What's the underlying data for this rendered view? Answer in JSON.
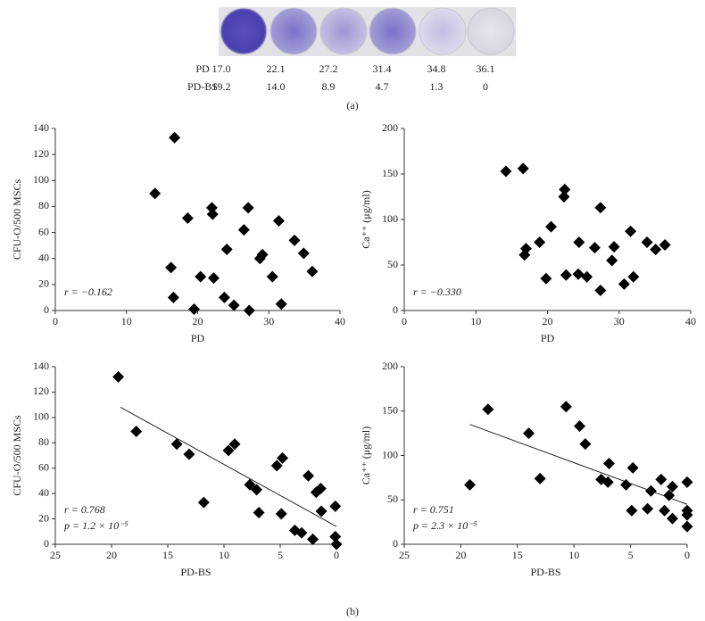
{
  "panel_a": {
    "rows": [
      {
        "label": "PD",
        "values": [
          "17.0",
          "22.1",
          "27.2",
          "31.4",
          "34.8",
          "36.1"
        ]
      },
      {
        "label": "PD-BS",
        "values": [
          "19.2",
          "14.0",
          "8.9",
          "4.7",
          "1.3",
          "0"
        ]
      }
    ],
    "caption": "(a)"
  },
  "caption_b": "(b)",
  "chart_data": [
    {
      "type": "scatter",
      "x_label": "PD",
      "y_label": "CFU-O/500 MSCs",
      "color": "#000000",
      "x": [
        14.0,
        16.75,
        16.25,
        16.6,
        18.6,
        19.5,
        20.4,
        22.0,
        22.1,
        22.25,
        23.75,
        24.1,
        25.1,
        26.5,
        27.1,
        27.25,
        28.75,
        29.1,
        30.5,
        31.4,
        31.75,
        33.6,
        34.9,
        36.1
      ],
      "y": [
        90,
        133,
        33,
        10,
        71,
        1,
        26,
        79,
        74,
        25,
        10,
        47,
        4,
        62,
        79,
        0,
        40,
        43,
        26,
        69,
        5,
        54,
        44,
        30
      ],
      "xlim": [
        0,
        40
      ],
      "ylim": [
        0,
        140
      ],
      "xticks": [
        0,
        10,
        20,
        30,
        40
      ],
      "yticks": [
        0,
        20,
        40,
        60,
        80,
        100,
        120,
        140
      ],
      "annotations": [
        "r = −0.162"
      ]
    },
    {
      "type": "scatter",
      "x_label": "PD",
      "y_label": "Ca⁺⁺ (μg/ml)",
      "color": "#000000",
      "x": [
        14.2,
        16.6,
        16.8,
        17.0,
        18.9,
        19.8,
        20.5,
        22.3,
        22.4,
        22.6,
        24.3,
        24.4,
        25.5,
        26.6,
        27.4,
        27.4,
        29.0,
        29.3,
        30.7,
        31.6,
        32.0,
        33.9,
        35.1,
        36.4
      ],
      "y": [
        153,
        156,
        61,
        68,
        75,
        35,
        92,
        125,
        133,
        39,
        40,
        75,
        37,
        69,
        113,
        22,
        55,
        70,
        29,
        87,
        37,
        75,
        67,
        72
      ],
      "xlim": [
        0,
        40
      ],
      "ylim": [
        0,
        200
      ],
      "xticks": [
        0,
        10,
        20,
        30,
        40
      ],
      "yticks": [
        0,
        50,
        100,
        150,
        200
      ],
      "annotations": [
        "r = −0.330"
      ]
    },
    {
      "type": "scatter",
      "x_label": "PD-BS",
      "y_label": "CFU-O/500 MSCs",
      "color": "#000000",
      "x": [
        19.4,
        17.8,
        14.2,
        13.1,
        11.8,
        9.6,
        9.05,
        7.7,
        7.1,
        6.9,
        5.3,
        4.8,
        4.9,
        3.7,
        3.1,
        2.5,
        2.1,
        1.8,
        1.4,
        1.35,
        0.1,
        0.1,
        0
      ],
      "y": [
        132,
        89,
        79,
        71,
        33,
        74,
        79,
        47,
        43,
        25,
        62,
        68,
        24,
        11,
        9,
        54,
        4,
        41,
        44,
        26,
        30,
        6,
        0
      ],
      "xlim": [
        25,
        0
      ],
      "ylim": [
        0,
        140
      ],
      "xticks": [
        25,
        20,
        15,
        10,
        5,
        0
      ],
      "yticks": [
        0,
        20,
        40,
        60,
        80,
        100,
        120,
        140
      ],
      "fit": {
        "x": [
          19.2,
          0
        ],
        "y": [
          108,
          14
        ]
      },
      "annotations": [
        "r = 0.768",
        "p = 1.2 × 10⁻⁵"
      ]
    },
    {
      "type": "scatter",
      "x_label": "PD-BS",
      "y_label": "Ca⁺⁺ (μg/ml)",
      "color": "#000000",
      "x": [
        19.2,
        17.6,
        14.0,
        13.0,
        10.7,
        9.5,
        9.0,
        7.6,
        7.0,
        6.9,
        5.4,
        4.8,
        4.9,
        3.2,
        3.5,
        2.3,
        2.0,
        1.6,
        1.3,
        1.3,
        0,
        0,
        0,
        0
      ],
      "y": [
        67,
        152,
        125,
        74,
        155,
        133,
        113,
        73,
        70,
        91,
        67,
        86,
        38,
        60,
        40,
        73,
        38,
        55,
        65,
        29,
        70,
        38,
        33,
        20
      ],
      "xlim": [
        25,
        0
      ],
      "ylim": [
        0,
        200
      ],
      "xticks": [
        25,
        20,
        15,
        10,
        5,
        0
      ],
      "yticks": [
        0,
        50,
        100,
        150,
        200
      ],
      "fit": {
        "x": [
          19.2,
          0
        ],
        "y": [
          135,
          45
        ]
      },
      "annotations": [
        "r = 0.751",
        "p = 2.3 × 10⁻⁵"
      ]
    }
  ]
}
